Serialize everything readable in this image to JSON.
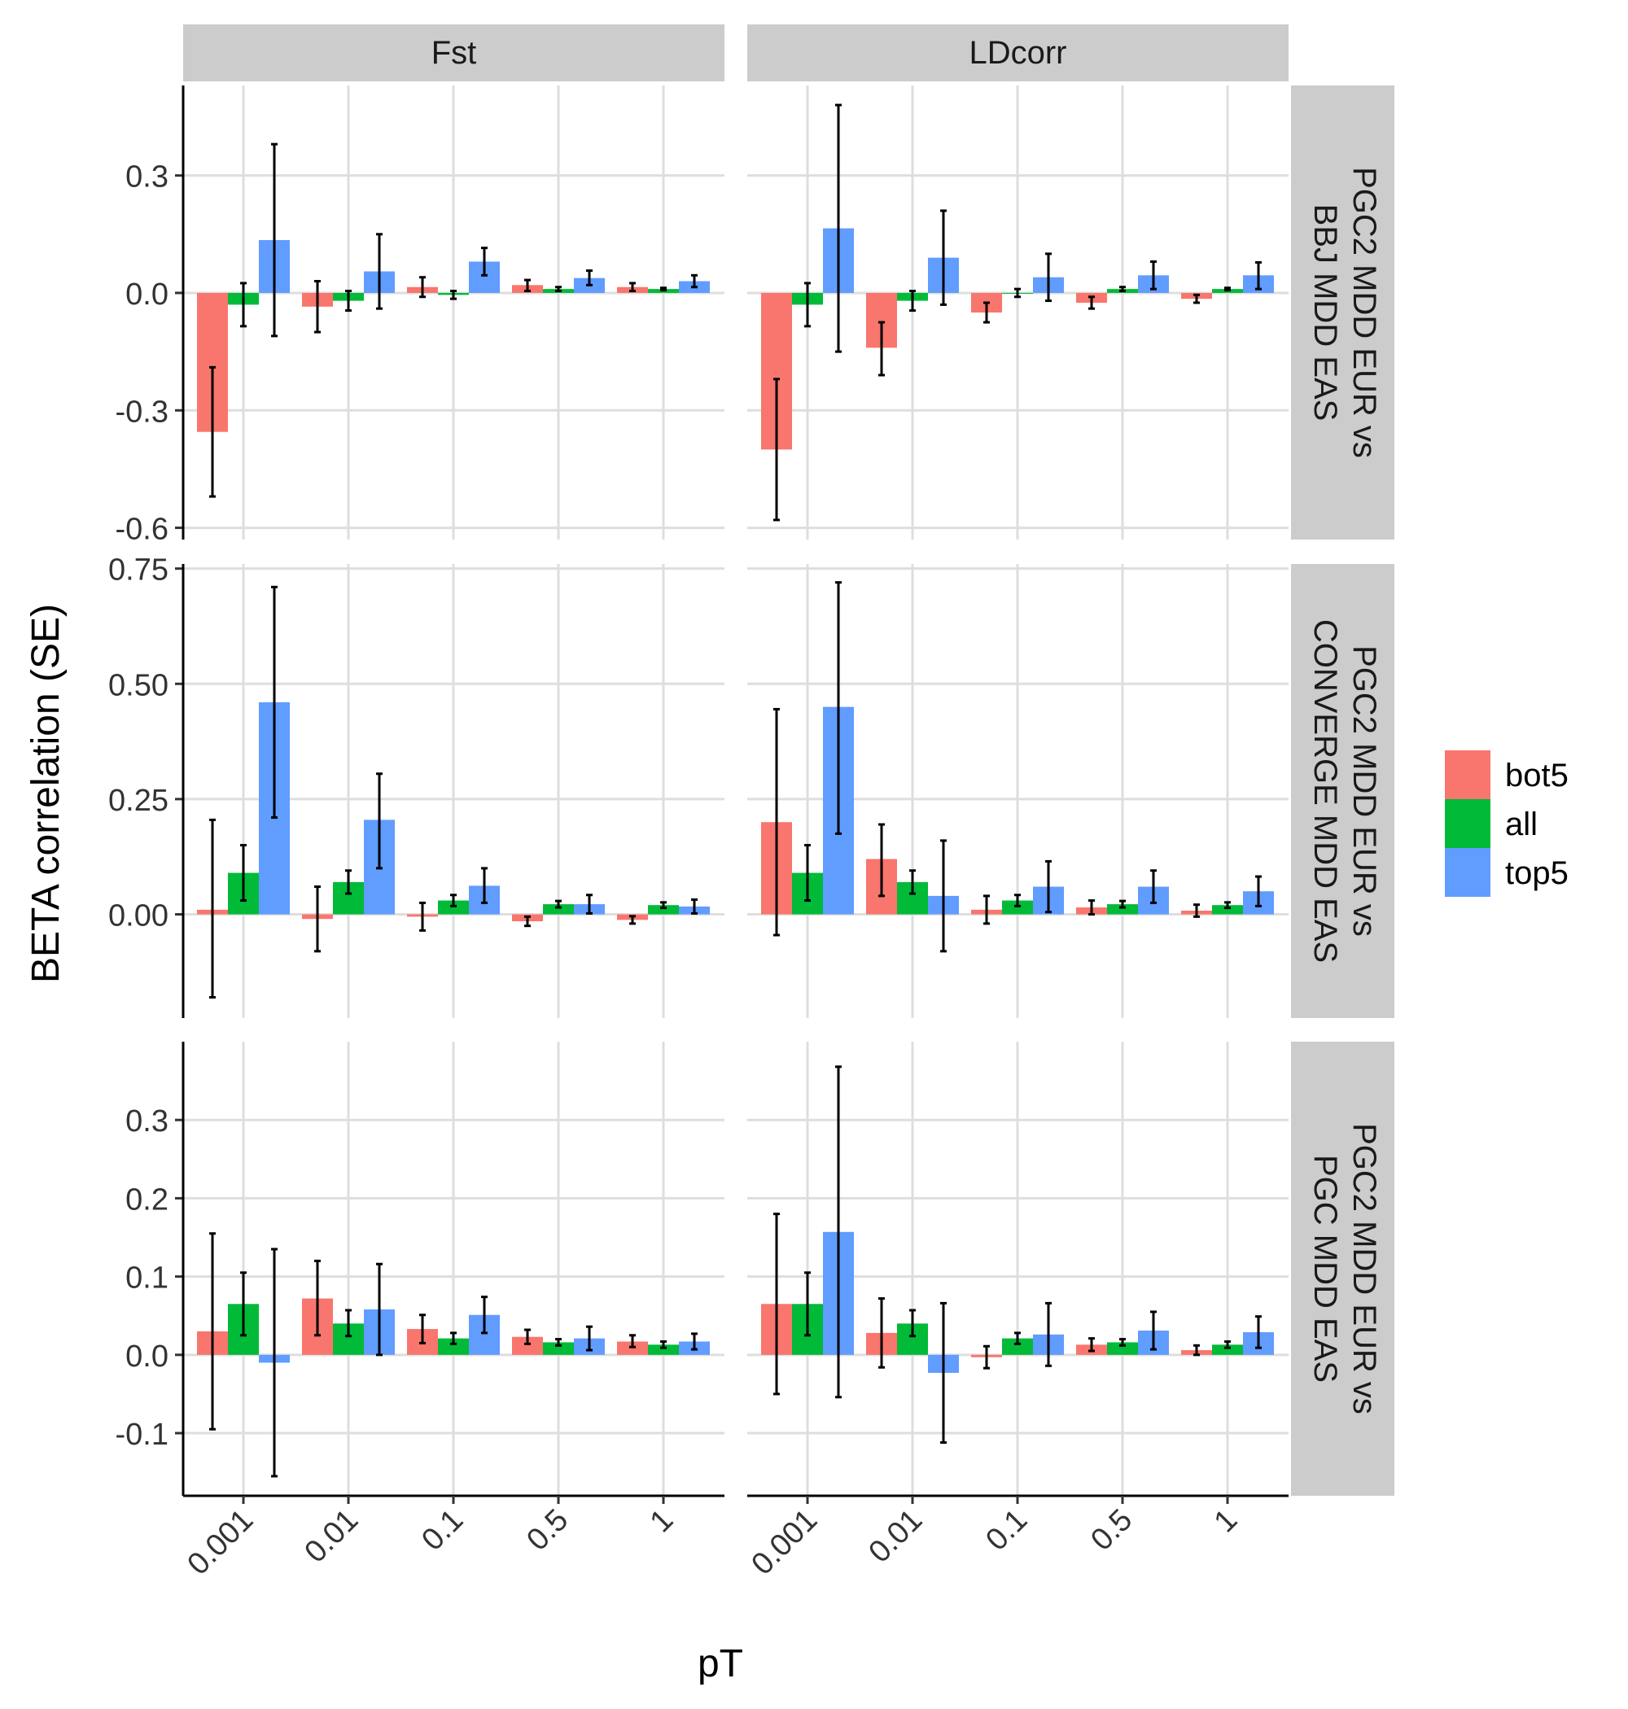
{
  "chart_data": {
    "type": "bar",
    "title": "",
    "xlabel": "pT",
    "ylabel": "BETA correlation (SE)",
    "categories": [
      "0.001",
      "0.01",
      "0.1",
      "0.5",
      "1"
    ],
    "columns": [
      "Fst",
      "LDcorr"
    ],
    "legend": {
      "position": "right",
      "items": [
        {
          "name": "bot5",
          "color": "#F8766D"
        },
        {
          "name": "all",
          "color": "#00BA38"
        },
        {
          "name": "top5",
          "color": "#619CFF"
        }
      ]
    },
    "grid": true,
    "rows": [
      {
        "label_lines": [
          "PGC2 MDD EUR vs",
          "BBJ MDD EAS"
        ],
        "ylim": [
          -0.63,
          0.53
        ],
        "ticks": [
          -0.6,
          -0.3,
          0.0,
          0.3
        ],
        "tick_labels": [
          "-0.6",
          "-0.3",
          "0.0",
          "0.3"
        ],
        "panels": {
          "Fst": {
            "bot5": {
              "values": [
                -0.355,
                -0.035,
                0.015,
                0.02,
                0.015
              ],
              "lower": [
                -0.52,
                -0.1,
                -0.01,
                0.005,
                0.005
              ],
              "upper": [
                -0.19,
                0.03,
                0.04,
                0.033,
                0.025
              ]
            },
            "all": {
              "values": [
                -0.03,
                -0.02,
                -0.005,
                0.01,
                0.01
              ],
              "lower": [
                -0.085,
                -0.045,
                -0.015,
                0.005,
                0.007
              ],
              "upper": [
                0.025,
                0.005,
                0.005,
                0.015,
                0.013
              ]
            },
            "top5": {
              "values": [
                0.135,
                0.055,
                0.08,
                0.038,
                0.03
              ],
              "lower": [
                -0.11,
                -0.04,
                0.045,
                0.02,
                0.015
              ],
              "upper": [
                0.38,
                0.15,
                0.115,
                0.057,
                0.045
              ]
            }
          },
          "LDcorr": {
            "bot5": {
              "values": [
                -0.4,
                -0.14,
                -0.05,
                -0.025,
                -0.015
              ],
              "lower": [
                -0.58,
                -0.21,
                -0.075,
                -0.04,
                -0.025
              ],
              "upper": [
                -0.22,
                -0.075,
                -0.025,
                -0.01,
                -0.005
              ]
            },
            "all": {
              "values": [
                -0.03,
                -0.02,
                0.0,
                0.01,
                0.01
              ],
              "lower": [
                -0.085,
                -0.045,
                -0.01,
                0.005,
                0.007
              ],
              "upper": [
                0.025,
                0.005,
                0.01,
                0.015,
                0.013
              ]
            },
            "top5": {
              "values": [
                0.165,
                0.09,
                0.04,
                0.045,
                0.045
              ],
              "lower": [
                -0.15,
                -0.03,
                -0.02,
                0.01,
                0.01
              ],
              "upper": [
                0.48,
                0.21,
                0.1,
                0.08,
                0.078
              ]
            }
          }
        }
      },
      {
        "label_lines": [
          "PGC2 MDD EUR vs",
          "CONVERGE MDD EAS"
        ],
        "ylim": [
          -0.225,
          0.76
        ],
        "ticks": [
          0.0,
          0.25,
          0.5,
          0.75
        ],
        "tick_labels": [
          "0.00",
          "0.25",
          "0.50",
          "0.75"
        ],
        "panels": {
          "Fst": {
            "bot5": {
              "values": [
                0.01,
                -0.01,
                -0.005,
                -0.015,
                -0.012
              ],
              "lower": [
                -0.18,
                -0.08,
                -0.035,
                -0.025,
                -0.02
              ],
              "upper": [
                0.205,
                0.06,
                0.025,
                -0.005,
                -0.004
              ]
            },
            "all": {
              "values": [
                0.09,
                0.07,
                0.03,
                0.022,
                0.02
              ],
              "lower": [
                0.03,
                0.045,
                0.018,
                0.015,
                0.014
              ],
              "upper": [
                0.15,
                0.095,
                0.042,
                0.029,
                0.026
              ]
            },
            "top5": {
              "values": [
                0.46,
                0.205,
                0.062,
                0.022,
                0.017
              ],
              "lower": [
                0.21,
                0.1,
                0.025,
                0.002,
                0.002
              ],
              "upper": [
                0.71,
                0.305,
                0.1,
                0.042,
                0.032
              ]
            }
          },
          "LDcorr": {
            "bot5": {
              "values": [
                0.2,
                0.12,
                0.01,
                0.015,
                0.008
              ],
              "lower": [
                -0.045,
                0.04,
                -0.02,
                0.0,
                -0.005
              ],
              "upper": [
                0.445,
                0.195,
                0.04,
                0.03,
                0.021
              ]
            },
            "all": {
              "values": [
                0.09,
                0.07,
                0.03,
                0.022,
                0.02
              ],
              "lower": [
                0.03,
                0.045,
                0.018,
                0.015,
                0.014
              ],
              "upper": [
                0.15,
                0.095,
                0.042,
                0.029,
                0.026
              ]
            },
            "top5": {
              "values": [
                0.45,
                0.04,
                0.06,
                0.06,
                0.05
              ],
              "lower": [
                0.175,
                -0.08,
                0.005,
                0.025,
                0.018
              ],
              "upper": [
                0.72,
                0.16,
                0.115,
                0.095,
                0.082
              ]
            }
          }
        }
      },
      {
        "label_lines": [
          "PGC2 MDD EUR vs",
          "PGC MDD EAS"
        ],
        "ylim": [
          -0.18,
          0.4
        ],
        "ticks": [
          -0.1,
          0.0,
          0.1,
          0.2,
          0.3
        ],
        "tick_labels": [
          "-0.1",
          "0.0",
          "0.1",
          "0.2",
          "0.3"
        ],
        "panels": {
          "Fst": {
            "bot5": {
              "values": [
                0.03,
                0.072,
                0.033,
                0.023,
                0.017
              ],
              "lower": [
                -0.095,
                0.025,
                0.015,
                0.014,
                0.01
              ],
              "upper": [
                0.155,
                0.12,
                0.051,
                0.032,
                0.025
              ]
            },
            "all": {
              "values": [
                0.065,
                0.04,
                0.021,
                0.016,
                0.013
              ],
              "lower": [
                0.025,
                0.024,
                0.014,
                0.012,
                0.009
              ],
              "upper": [
                0.105,
                0.057,
                0.028,
                0.02,
                0.017
              ]
            },
            "top5": {
              "values": [
                -0.01,
                0.058,
                0.051,
                0.021,
                0.017
              ],
              "lower": [
                -0.155,
                0.0,
                0.028,
                0.006,
                0.007
              ],
              "upper": [
                0.135,
                0.116,
                0.074,
                0.036,
                0.027
              ]
            }
          },
          "LDcorr": {
            "bot5": {
              "values": [
                0.065,
                0.028,
                -0.003,
                0.013,
                0.006
              ],
              "lower": [
                -0.05,
                -0.016,
                -0.017,
                0.005,
                0.0
              ],
              "upper": [
                0.18,
                0.072,
                0.011,
                0.021,
                0.012
              ]
            },
            "all": {
              "values": [
                0.065,
                0.04,
                0.021,
                0.016,
                0.013
              ],
              "lower": [
                0.025,
                0.024,
                0.014,
                0.012,
                0.009
              ],
              "upper": [
                0.105,
                0.057,
                0.028,
                0.02,
                0.017
              ]
            },
            "top5": {
              "values": [
                0.157,
                -0.023,
                0.026,
                0.031,
                0.029
              ],
              "lower": [
                -0.054,
                -0.112,
                -0.014,
                0.007,
                0.009
              ],
              "upper": [
                0.368,
                0.066,
                0.066,
                0.055,
                0.049
              ]
            }
          }
        }
      }
    ]
  }
}
